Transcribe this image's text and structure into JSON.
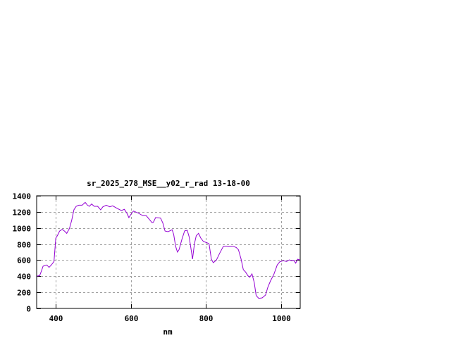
{
  "chart_data": {
    "type": "line",
    "title": "sr_2025_278_MSE__y02_r_rad 13-18-00",
    "xlabel": "nm",
    "ylabel": "",
    "xlim": [
      350,
      1050
    ],
    "ylim": [
      0,
      1400
    ],
    "xticks": [
      400,
      600,
      800,
      1000
    ],
    "yticks": [
      0,
      200,
      400,
      600,
      800,
      1000,
      1200,
      1400
    ],
    "grid": true,
    "legend": "none",
    "line_color": "#9400d3",
    "series": [
      {
        "x": [
          350,
          358,
          363,
          367,
          377,
          383,
          389,
          396,
          401,
          405,
          411,
          418,
          424,
          430,
          437,
          443,
          449,
          455,
          462,
          471,
          479,
          485,
          490,
          496,
          503,
          512,
          520,
          526,
          535,
          544,
          552,
          563,
          575,
          583,
          590,
          595,
          600,
          607,
          619,
          632,
          641,
          649,
          657,
          660,
          666,
          679,
          685,
          691,
          699,
          710,
          714,
          719,
          724,
          728,
          736,
          743,
          750,
          755,
          759,
          764,
          769,
          774,
          780,
          786,
          793,
          802,
          808,
          814,
          819,
          827,
          836,
          846,
          855,
          861,
          871,
          880,
          886,
          893,
          899,
          905,
          911,
          916,
          922,
          928,
          933,
          940,
          949,
          958,
          964,
          971,
          980,
          989,
          996,
          1005,
          1014,
          1021,
          1027,
          1033,
          1038,
          1043,
          1050
        ],
        "y": [
          400,
          408,
          467,
          525,
          540,
          510,
          540,
          583,
          875,
          904,
          962,
          983,
          962,
          933,
          992,
          1094,
          1225,
          1269,
          1283,
          1283,
          1318,
          1283,
          1269,
          1298,
          1269,
          1269,
          1225,
          1263,
          1283,
          1263,
          1275,
          1245,
          1216,
          1231,
          1181,
          1129,
          1167,
          1210,
          1187,
          1152,
          1152,
          1108,
          1064,
          1070,
          1129,
          1123,
          1064,
          962,
          954,
          977,
          919,
          773,
          700,
          729,
          860,
          963,
          971,
          890,
          773,
          613,
          802,
          904,
          933,
          875,
          831,
          817,
          802,
          613,
          569,
          598,
          685,
          773,
          773,
          767,
          773,
          758,
          729,
          613,
          481,
          452,
          408,
          388,
          429,
          321,
          160,
          125,
          131,
          166,
          263,
          341,
          423,
          540,
          580,
          592,
          583,
          604,
          592,
          598,
          563,
          612,
          600
        ]
      }
    ]
  }
}
